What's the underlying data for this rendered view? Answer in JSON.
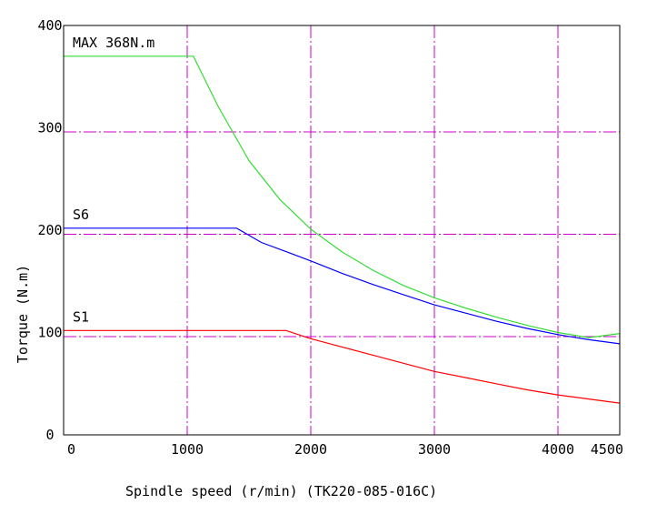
{
  "chart_data": {
    "type": "line",
    "title": "",
    "xlabel": "Spindle speed (r/min) (TK220-085-016C)",
    "ylabel": "Torque (N.m)",
    "xlim": [
      0,
      4500
    ],
    "ylim": [
      0,
      400
    ],
    "x_ticks": [
      0,
      1000,
      2000,
      3000,
      4000,
      4500
    ],
    "y_ticks": [
      0,
      100,
      200,
      300,
      400
    ],
    "grid": true,
    "grid_color": "#cc00cc",
    "grid_x": [
      1000,
      2000,
      3000,
      4000
    ],
    "grid_y": [
      96,
      196,
      296
    ],
    "series": [
      {
        "name": "MAX 368N.m",
        "color": "#33dd33",
        "x": [
          0,
          1050,
          1250,
          1500,
          1750,
          2000,
          2250,
          2500,
          2750,
          3000,
          3250,
          3500,
          3750,
          4000,
          4250,
          4500
        ],
        "values": [
          370,
          370,
          321,
          268,
          230,
          201,
          179,
          161,
          146,
          134,
          124,
          115,
          107,
          100,
          95,
          99
        ]
      },
      {
        "name": "S6",
        "color": "#0000ff",
        "x": [
          0,
          1400,
          1600,
          1800,
          2000,
          2250,
          2500,
          2750,
          3000,
          3250,
          3500,
          3750,
          4000,
          4250,
          4500
        ],
        "values": [
          202,
          202,
          188,
          179,
          170,
          158,
          147,
          137,
          127,
          119,
          111,
          104,
          98,
          93,
          89
        ]
      },
      {
        "name": "S1",
        "color": "#ff0000",
        "x": [
          0,
          1800,
          2000,
          2250,
          2500,
          2750,
          3000,
          3250,
          3500,
          3750,
          4000,
          4250,
          4500
        ],
        "values": [
          102,
          102,
          94,
          86,
          78,
          70,
          62,
          56,
          50,
          44,
          39,
          35,
          31
        ]
      }
    ]
  }
}
